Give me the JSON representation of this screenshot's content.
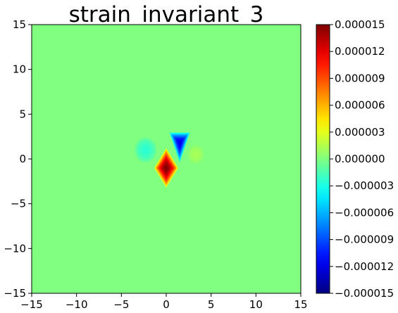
{
  "chart_data": {
    "type": "heatmap",
    "title": "strain_invariant_3",
    "xlabel": "",
    "ylabel": "",
    "xlim": [
      -15,
      15
    ],
    "ylim": [
      -15,
      15
    ],
    "x_ticks": [
      -15,
      -10,
      -5,
      0,
      5,
      10,
      15
    ],
    "y_ticks": [
      -15,
      -10,
      -5,
      0,
      5,
      10,
      15
    ],
    "x_tick_labels": [
      "−15",
      "−10",
      "−5",
      "0",
      "5",
      "10",
      "15"
    ],
    "y_tick_labels": [
      "−15",
      "−10",
      "−5",
      "0",
      "5",
      "10",
      "15"
    ],
    "grid": false,
    "colormap": "jet",
    "colorbar": {
      "vmin": -1.5e-05,
      "vmax": 1.5e-05,
      "ticks": [
        -1.5e-05,
        -1.2e-05,
        -9e-06,
        -6e-06,
        -3e-06,
        0.0,
        3e-06,
        6e-06,
        9e-06,
        1.2e-05,
        1.5e-05
      ],
      "tick_labels": [
        "−0.000015",
        "−0.000012",
        "−0.000009",
        "−0.000006",
        "−0.000003",
        "0.000000",
        "0.000003",
        "0.000006",
        "0.000009",
        "0.000012",
        "0.000015"
      ]
    },
    "background_value": 0.0,
    "features": [
      {
        "shape": "diamond",
        "center": [
          0,
          -1
        ],
        "half_width": 1.4,
        "half_height": 2.3,
        "peak": 1.5e-05
      },
      {
        "shape": "triangle",
        "vertices": [
          [
            0.3,
            3.0
          ],
          [
            2.7,
            3.0
          ],
          [
            1.5,
            -0.5
          ]
        ],
        "peak": -1.2e-05
      },
      {
        "shape": "blob",
        "center": [
          -2.3,
          1.0
        ],
        "radius": 1.3,
        "peak": -2.5e-06
      },
      {
        "shape": "blob",
        "center": [
          3.3,
          0.5
        ],
        "radius": 1.0,
        "peak": 1.2e-06
      }
    ]
  }
}
